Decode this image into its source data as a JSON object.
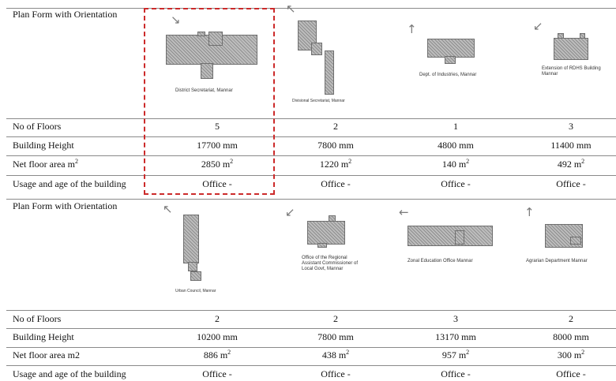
{
  "top": {
    "header_label": "Plan Form with Orientation",
    "rows": [
      {
        "label": "No of Floors",
        "values": [
          "5",
          "2",
          "1",
          "3"
        ]
      },
      {
        "label": "Building Height",
        "values": [
          "17700 mm",
          "7800 mm",
          "4800 mm",
          "11400 mm"
        ]
      },
      {
        "label_main": "Net floor area m",
        "label_sup": "2",
        "values": [
          "2850",
          "1220",
          "140",
          "492"
        ],
        "unit_main": "m",
        "unit_sup": "2"
      },
      {
        "label": "Usage and age of the building",
        "values": [
          "Office -",
          "Office -",
          "Office -",
          "Office -"
        ]
      }
    ],
    "captions": {
      "c1": "District Secretariat, Mannar",
      "c2": "Divisional Secretariat, Mannar",
      "c3": "Dept. of Industries, Mannar",
      "c4_line1": "Extension of RDHS Building",
      "c4_line2": "Mannar"
    },
    "arrows": {
      "a1": "↘",
      "a2": "↖",
      "a3": "↑",
      "a4": "↙"
    }
  },
  "bottom": {
    "header_label": "Plan Form with Orientation",
    "rows": [
      {
        "label": "No of Floors",
        "values": [
          "2",
          "2",
          "3",
          "2"
        ]
      },
      {
        "label": "Building Height",
        "values": [
          "10200 mm",
          "7800 mm",
          "13170 mm",
          "8000 mm"
        ]
      },
      {
        "label": "Net floor area m2",
        "values": [
          "886",
          "438",
          "957",
          "300"
        ],
        "unit_main": "m",
        "unit_sup": "2"
      },
      {
        "label": "Usage and age of the building",
        "values": [
          "Office -",
          "Office -",
          "Office -",
          "Office -"
        ]
      }
    ],
    "captions": {
      "c1": "Urban Council, Mannar",
      "c2_line1": "Office of the Regional",
      "c2_line2": "Assistant Commissioner of",
      "c2_line3": "Local Govt, Mannar",
      "c3": "Zonal Education Office Mannar",
      "c4": "Agrarian Department Mannar"
    },
    "arrows": {
      "a1": "↖",
      "a2": "↙",
      "a3": "←",
      "a4": "↑"
    }
  },
  "colors": {
    "highlight_border": "#cc2a2a",
    "rule": "#8a8a8a",
    "hatch": "#8e8e8e"
  }
}
